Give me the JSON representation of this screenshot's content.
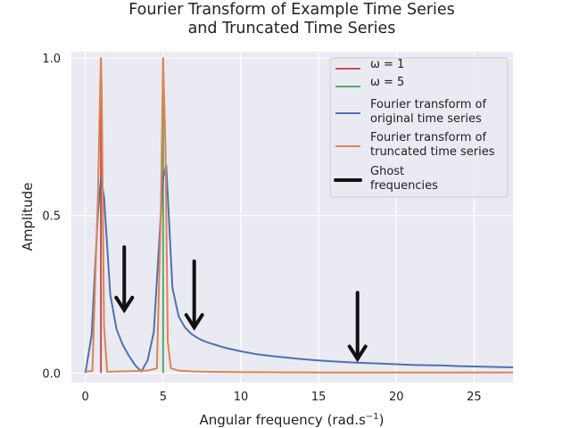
{
  "chart_data": {
    "type": "line",
    "title": [
      "Fourier Transform of Example Time Series",
      "and Truncated Time Series"
    ],
    "xlabel": "Angular frequency (rad.s",
    "xlabel_sup": "−1",
    "xlabel_suffix": ")",
    "ylabel": "Amplitude",
    "xlim": [
      -0.9,
      27.5
    ],
    "ylim": [
      -0.03,
      1.02
    ],
    "xticks": [
      0,
      5,
      10,
      15,
      20,
      25
    ],
    "yticks": [
      0.0,
      0.5,
      1.0
    ],
    "ytick_labels": [
      "0.0",
      "0.5",
      "1.0"
    ],
    "grid": true,
    "legend_position": "top-right",
    "legend": [
      {
        "label": [
          "ω = 1"
        ],
        "color": "#c44e52",
        "kind": "line"
      },
      {
        "label": [
          "ω = 5"
        ],
        "color": "#55a868",
        "kind": "line"
      },
      {
        "label": [
          "Fourier transform of",
          "original time series"
        ],
        "color": "#4c72b0",
        "kind": "line"
      },
      {
        "label": [
          "Fourier transform of",
          "truncated time series"
        ],
        "color": "#dd8452",
        "kind": "line"
      },
      {
        "label": [
          "Ghost",
          "frequencies"
        ],
        "color": "#111111",
        "kind": "arrow"
      }
    ],
    "series": [
      {
        "id": "omega1",
        "color": "#c44e52",
        "width": 2,
        "x": [
          1.0,
          1.0
        ],
        "y": [
          0.0,
          1.0
        ]
      },
      {
        "id": "omega5",
        "color": "#55a868",
        "width": 2,
        "x": [
          5.0,
          5.0
        ],
        "y": [
          0.0,
          1.0
        ]
      },
      {
        "id": "original",
        "color": "#4c72b0",
        "width": 2,
        "x": [
          0,
          0.4,
          0.8,
          1.0,
          1.2,
          1.6,
          2.0,
          2.4,
          2.8,
          3.2,
          3.6,
          4.0,
          4.4,
          4.8,
          5.0,
          5.2,
          5.6,
          6.0,
          6.4,
          6.8,
          7.2,
          7.6,
          8,
          9,
          10,
          11,
          12,
          13,
          14,
          15,
          16,
          17,
          18,
          19,
          20,
          21,
          22,
          23,
          24,
          25,
          26,
          27.5
        ],
        "y": [
          0.0,
          0.12,
          0.5,
          0.62,
          0.56,
          0.25,
          0.14,
          0.09,
          0.055,
          0.025,
          0.005,
          0.04,
          0.13,
          0.46,
          0.62,
          0.66,
          0.27,
          0.18,
          0.145,
          0.125,
          0.112,
          0.102,
          0.095,
          0.08,
          0.069,
          0.06,
          0.054,
          0.049,
          0.044,
          0.04,
          0.037,
          0.034,
          0.032,
          0.03,
          0.028,
          0.026,
          0.025,
          0.024,
          0.022,
          0.021,
          0.02,
          0.018
        ]
      },
      {
        "id": "truncated",
        "color": "#dd8452",
        "width": 2,
        "x": [
          0,
          0.45,
          0.8,
          0.95,
          1.0,
          1.05,
          1.2,
          1.4,
          2.0,
          3.0,
          4.0,
          4.6,
          4.85,
          5.0,
          5.15,
          5.3,
          5.5,
          6,
          7,
          8,
          10,
          15,
          20,
          27.5
        ],
        "y": [
          0.005,
          0.006,
          0.55,
          0.9,
          1.0,
          0.9,
          0.15,
          0.004,
          0.005,
          0.006,
          0.008,
          0.015,
          0.5,
          1.0,
          0.72,
          0.1,
          0.015,
          0.008,
          0.005,
          0.004,
          0.003,
          0.002,
          0.002,
          0.002
        ]
      }
    ],
    "annotations": [
      {
        "type": "arrow",
        "color": "#111111",
        "x": 2.5,
        "y_start": 0.4,
        "y_end": 0.2
      },
      {
        "type": "arrow",
        "color": "#111111",
        "x": 7.0,
        "y_start": 0.355,
        "y_end": 0.145
      },
      {
        "type": "arrow",
        "color": "#111111",
        "x": 17.5,
        "y_start": 0.255,
        "y_end": 0.045
      }
    ]
  }
}
